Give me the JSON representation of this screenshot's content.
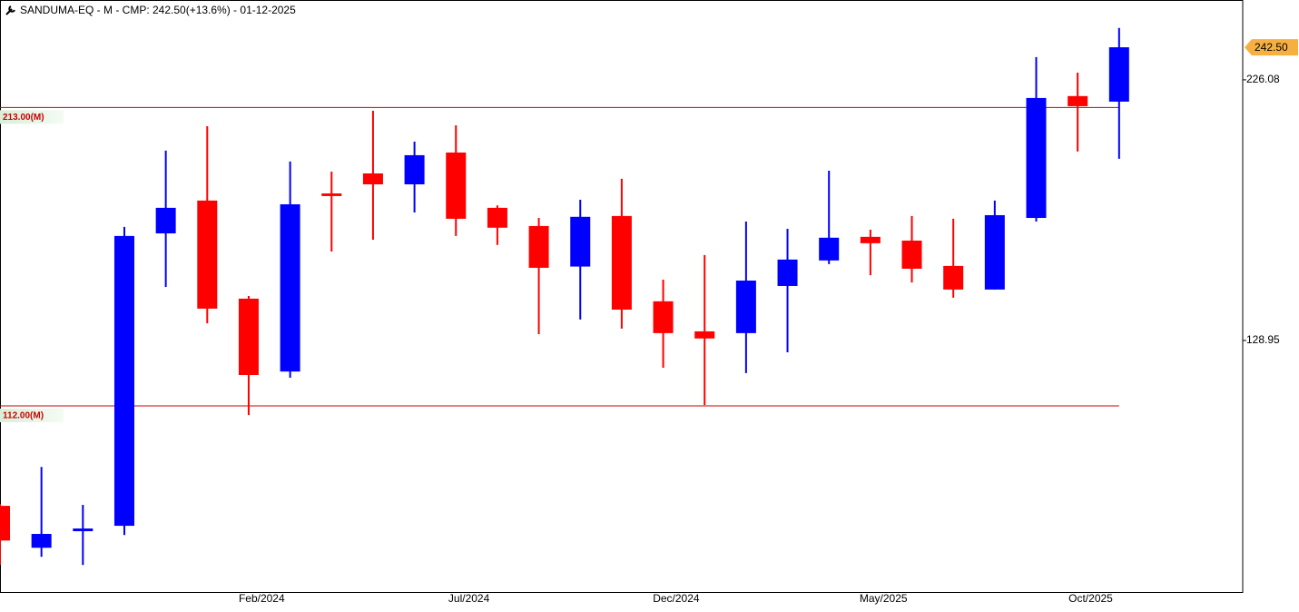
{
  "chart_data": {
    "type": "candlestick",
    "title": "SANDUMA-EQ - M - CMP: 242.50(+13.6%) - 01-12-2025",
    "categories": [
      null,
      null,
      null,
      null,
      null,
      "Feb/2024",
      null,
      null,
      null,
      null,
      "Jul/2024",
      null,
      null,
      null,
      null,
      "Dec/2024",
      null,
      null,
      null,
      null,
      "May/2025",
      null,
      null,
      null,
      null,
      "Oct/2025",
      null,
      null
    ],
    "open": [
      90.3,
      82.5,
      85.5,
      86.5,
      162.4,
      174.3,
      141.1,
      120.6,
      177.0,
      184.8,
      180.5,
      193.3,
      171.6,
      165.0,
      151.2,
      168.6,
      140.3,
      131.5,
      131.0,
      145.0,
      153.2,
      161.2,
      159.9,
      151.4,
      143.9,
      167.9,
      218.3,
      215.7
    ],
    "high": [
      90.7,
      98.2,
      90.5,
      164.7,
      194.1,
      204.6,
      141.9,
      189.6,
      185.5,
      211.5,
      197.9,
      205.0,
      172.5,
      167.9,
      174.6,
      182.7,
      147.0,
      155.0,
      166.6,
      164.0,
      185.9,
      163.7,
      168.6,
      167.6,
      174.3,
      237.4,
      229.6,
      252.8
    ],
    "low": [
      79.5,
      80.9,
      79.5,
      84.8,
      144.7,
      133.8,
      109.8,
      119.0,
      156.2,
      160.2,
      169.9,
      161.5,
      158.4,
      130.7,
      134.9,
      132.3,
      121.6,
      112.2,
      120.2,
      125.7,
      152.0,
      148.4,
      146.1,
      141.4,
      143.9,
      166.6,
      193.7,
      190.7
    ],
    "close": [
      83.8,
      85.0,
      86.0,
      161.5,
      171.6,
      138.1,
      119.7,
      172.9,
      176.0,
      180.5,
      192.2,
      167.6,
      164.4,
      150.8,
      168.3,
      137.8,
      131.0,
      129.5,
      146.7,
      153.5,
      160.9,
      159.0,
      150.5,
      143.9,
      168.9,
      217.4,
      213.6,
      242.5
    ],
    "up_color": "#0000ff",
    "down_color": "#ff0000",
    "log_scale": true,
    "ylim": [
      75,
      268.5
    ],
    "yticks": [
      226.08,
      128.95
    ],
    "levels": [
      {
        "value": 213,
        "label": "213.00(M)"
      },
      {
        "value": 112,
        "label": "112.00(M)"
      }
    ],
    "level_color": "#cc0000",
    "last_price": {
      "value": 242.5,
      "label": "242.50"
    },
    "last_price_color": "#f5b041"
  }
}
